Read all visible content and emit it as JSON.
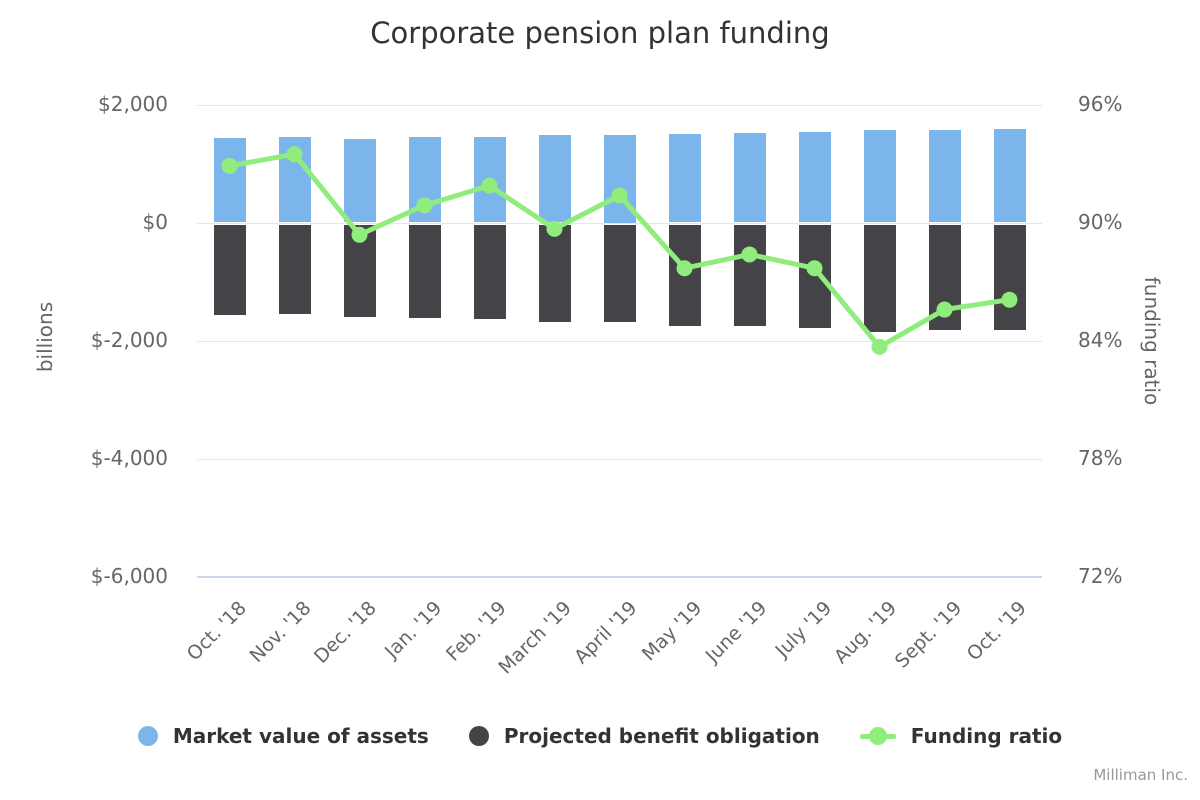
{
  "title": "Corporate pension plan funding",
  "credits": "Milliman Inc.",
  "colors": {
    "assets": "#7cb5ec",
    "obligation": "#434348",
    "ratio": "#90ed7d",
    "grid": "#e6e6e6",
    "axis_line": "#ccd6eb",
    "title_text": "#333333",
    "axis_text": "#666666",
    "credits_text": "#999999"
  },
  "legend": {
    "items": [
      {
        "label": "Market value of assets",
        "symbol": "circle",
        "color": "#7cb5ec"
      },
      {
        "label": "Projected benefit obligation",
        "symbol": "circle",
        "color": "#434348"
      },
      {
        "label": "Funding ratio",
        "symbol": "line-marker",
        "color": "#90ed7d"
      }
    ]
  },
  "chart_data": {
    "type": "bar",
    "subtype": "columns-positive-negative-with-line",
    "categories": [
      "Oct. '18",
      "Nov. '18",
      "Dec. '18",
      "Jan. '19",
      "Feb. '19",
      "March '19",
      "April '19",
      "May '19",
      "June '19",
      "July '19",
      "Aug. '19",
      "Sept. '19",
      "Oct. '19"
    ],
    "series": [
      {
        "name": "Market value of assets",
        "type": "column",
        "axis": "left",
        "color": "#7cb5ec",
        "values": [
          1445,
          1460,
          1425,
          1460,
          1465,
          1495,
          1500,
          1515,
          1530,
          1540,
          1570,
          1580,
          1585
        ]
      },
      {
        "name": "Projected benefit obligation",
        "type": "column",
        "axis": "left",
        "color": "#434348",
        "values": [
          -1555,
          -1535,
          -1590,
          -1610,
          -1625,
          -1685,
          -1685,
          -1740,
          -1750,
          -1785,
          -1845,
          -1815,
          -1815
        ]
      },
      {
        "name": "Funding ratio",
        "type": "line",
        "axis": "right",
        "color": "#90ed7d",
        "values": [
          92.9,
          93.5,
          89.4,
          90.9,
          91.9,
          89.7,
          91.4,
          87.7,
          88.4,
          87.7,
          83.7,
          85.6,
          86.1
        ]
      }
    ],
    "title": "Corporate pension plan funding",
    "xlabel": "",
    "y_left": {
      "title": "billions",
      "min": -6000,
      "max": 2000,
      "tick_values": [
        2000,
        0,
        -2000,
        -4000,
        -6000
      ],
      "tick_labels": [
        "$2,000",
        "$0",
        "$-2,000",
        "$-4,000",
        "$-6,000"
      ]
    },
    "y_right": {
      "title": "funding ratio",
      "min": 72,
      "max": 96,
      "tick_values": [
        96,
        90,
        84,
        78,
        72
      ],
      "tick_labels": [
        "96%",
        "90%",
        "84%",
        "78%",
        "72%"
      ]
    },
    "grid": true,
    "legend_position": "bottom"
  }
}
